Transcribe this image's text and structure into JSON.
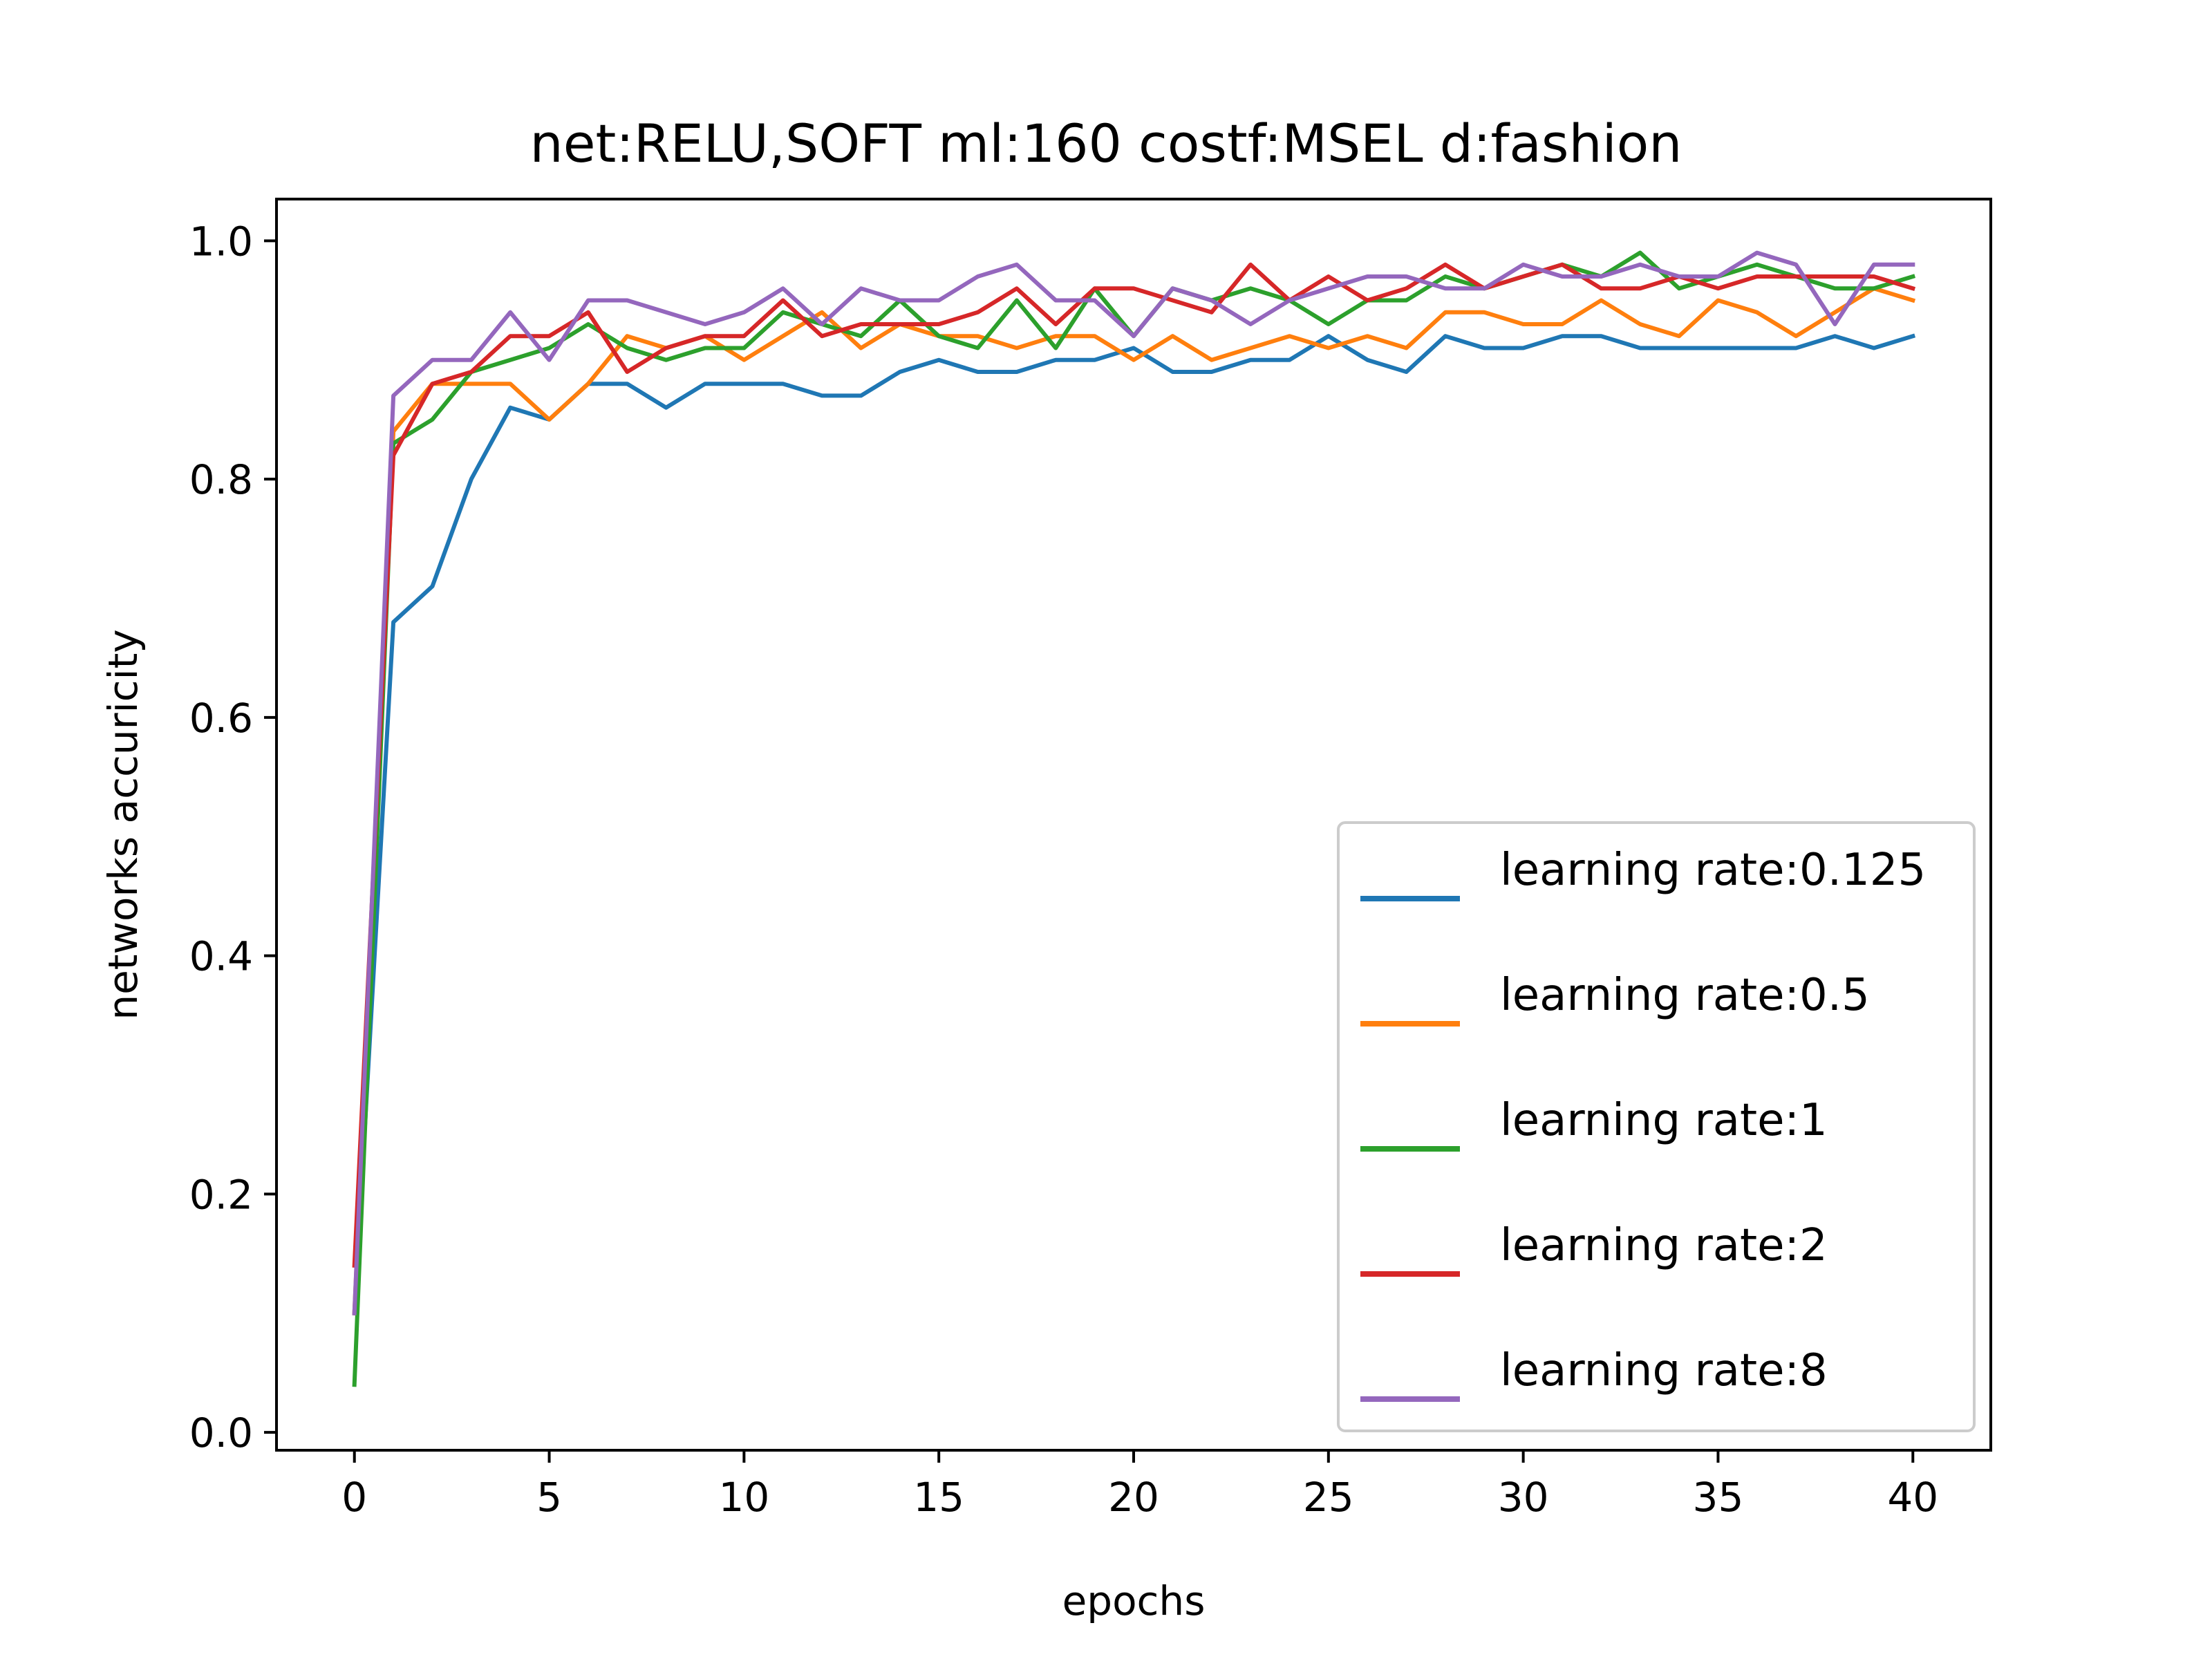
{
  "chart_data": {
    "type": "line",
    "title": "net:RELU,SOFT ml:160 costf:MSEL d:fashion",
    "xlabel": "epochs",
    "ylabel": "networks accuricity",
    "xlim": [
      -2,
      42
    ],
    "ylim": [
      -0.015,
      1.035
    ],
    "xticks": [
      0,
      5,
      10,
      15,
      20,
      25,
      30,
      35,
      40
    ],
    "yticks": [
      0.0,
      0.2,
      0.4,
      0.6,
      0.8,
      1.0
    ],
    "xtick_labels": [
      "0",
      "5",
      "10",
      "15",
      "20",
      "25",
      "30",
      "35",
      "40"
    ],
    "ytick_labels": [
      "0.0",
      "0.2",
      "0.4",
      "0.6",
      "0.8",
      "1.0"
    ],
    "grid": false,
    "legend_position": "lower-right",
    "x": [
      0,
      1,
      2,
      3,
      4,
      5,
      6,
      7,
      8,
      9,
      10,
      11,
      12,
      13,
      14,
      15,
      16,
      17,
      18,
      19,
      20,
      21,
      22,
      23,
      24,
      25,
      26,
      27,
      28,
      29,
      30,
      31,
      32,
      33,
      34,
      35,
      36,
      37,
      38,
      39,
      40
    ],
    "series": [
      {
        "name": "learning rate:0.125",
        "color": "#1f77b4",
        "values": [
          0.1,
          0.68,
          0.71,
          0.8,
          0.86,
          0.85,
          0.88,
          0.88,
          0.86,
          0.88,
          0.88,
          0.88,
          0.87,
          0.87,
          0.89,
          0.9,
          0.89,
          0.89,
          0.9,
          0.9,
          0.91,
          0.89,
          0.89,
          0.9,
          0.9,
          0.92,
          0.9,
          0.89,
          0.92,
          0.91,
          0.91,
          0.92,
          0.92,
          0.91,
          0.91,
          0.91,
          0.91,
          0.91,
          0.92,
          0.91,
          0.92
        ]
      },
      {
        "name": "learning rate:0.5",
        "color": "#ff7f0e",
        "values": [
          0.1,
          0.84,
          0.88,
          0.88,
          0.88,
          0.85,
          0.88,
          0.92,
          0.91,
          0.92,
          0.9,
          0.92,
          0.94,
          0.91,
          0.93,
          0.92,
          0.92,
          0.91,
          0.92,
          0.92,
          0.9,
          0.92,
          0.9,
          0.91,
          0.92,
          0.91,
          0.92,
          0.91,
          0.94,
          0.94,
          0.93,
          0.93,
          0.95,
          0.93,
          0.92,
          0.95,
          0.94,
          0.92,
          0.94,
          0.96,
          0.95
        ]
      },
      {
        "name": "learning rate:1",
        "color": "#2ca02c",
        "values": [
          0.04,
          0.83,
          0.85,
          0.89,
          0.9,
          0.91,
          0.93,
          0.91,
          0.9,
          0.91,
          0.91,
          0.94,
          0.93,
          0.92,
          0.95,
          0.92,
          0.91,
          0.95,
          0.91,
          0.96,
          0.92,
          0.96,
          0.95,
          0.96,
          0.95,
          0.93,
          0.95,
          0.95,
          0.97,
          0.96,
          0.97,
          0.98,
          0.97,
          0.99,
          0.96,
          0.97,
          0.98,
          0.97,
          0.96,
          0.96,
          0.97
        ]
      },
      {
        "name": "learning rate:2",
        "color": "#d62728",
        "values": [
          0.14,
          0.82,
          0.88,
          0.89,
          0.92,
          0.92,
          0.94,
          0.89,
          0.91,
          0.92,
          0.92,
          0.95,
          0.92,
          0.93,
          0.93,
          0.93,
          0.94,
          0.96,
          0.93,
          0.96,
          0.96,
          0.95,
          0.94,
          0.98,
          0.95,
          0.97,
          0.95,
          0.96,
          0.98,
          0.96,
          0.97,
          0.98,
          0.96,
          0.96,
          0.97,
          0.96,
          0.97,
          0.97,
          0.97,
          0.97,
          0.96
        ]
      },
      {
        "name": "learning rate:8",
        "color": "#9467bd",
        "values": [
          0.1,
          0.87,
          0.9,
          0.9,
          0.94,
          0.9,
          0.95,
          0.95,
          0.94,
          0.93,
          0.94,
          0.96,
          0.93,
          0.96,
          0.95,
          0.95,
          0.97,
          0.98,
          0.95,
          0.95,
          0.92,
          0.96,
          0.95,
          0.93,
          0.95,
          0.96,
          0.97,
          0.97,
          0.96,
          0.96,
          0.98,
          0.97,
          0.97,
          0.98,
          0.97,
          0.97,
          0.99,
          0.98,
          0.93,
          0.98,
          0.98
        ]
      }
    ]
  }
}
